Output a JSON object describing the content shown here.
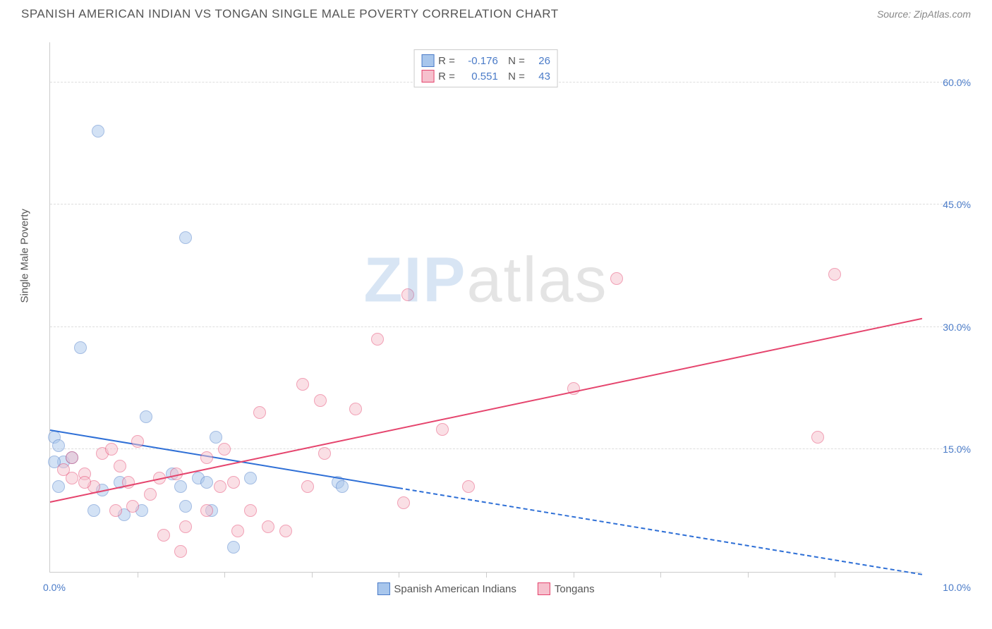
{
  "header": {
    "title": "SPANISH AMERICAN INDIAN VS TONGAN SINGLE MALE POVERTY CORRELATION CHART",
    "source": "Source: ZipAtlas.com"
  },
  "watermark": {
    "zip": "ZIP",
    "atlas": "atlas"
  },
  "chart": {
    "type": "scatter",
    "background_color": "#ffffff",
    "grid_color": "#dddddd",
    "axis_color": "#cccccc",
    "axis_label_color": "#4a7bc8",
    "text_color": "#555555",
    "title_fontsize": 17,
    "label_fontsize": 14,
    "y_axis_title": "Single Male Poverty",
    "xlim": [
      0,
      10
    ],
    "ylim": [
      0,
      65
    ],
    "x_ticks": [
      0,
      1,
      2,
      3,
      4,
      5,
      6,
      7,
      8,
      9,
      10
    ],
    "x_tick_labels": [
      "0.0%",
      "",
      "",
      "",
      "",
      "",
      "",
      "",
      "",
      "",
      "10.0%"
    ],
    "y_ticks": [
      15,
      30,
      45,
      60
    ],
    "y_tick_labels": [
      "15.0%",
      "30.0%",
      "45.0%",
      "60.0%"
    ],
    "marker_radius": 9,
    "marker_opacity": 0.5,
    "series": [
      {
        "name": "Spanish American Indians",
        "marker_fill": "#a8c6ec",
        "marker_stroke": "#4a7bc8",
        "line_color": "#2e6fd6",
        "line_width": 2,
        "R": "-0.176",
        "N": "26",
        "points": [
          [
            0.55,
            54.0
          ],
          [
            1.55,
            41.0
          ],
          [
            0.35,
            27.5
          ],
          [
            0.05,
            16.5
          ],
          [
            0.1,
            15.5
          ],
          [
            0.15,
            13.5
          ],
          [
            0.05,
            13.5
          ],
          [
            0.25,
            14.0
          ],
          [
            0.8,
            11.0
          ],
          [
            1.1,
            19.0
          ],
          [
            1.4,
            12.0
          ],
          [
            1.5,
            10.5
          ],
          [
            1.55,
            8.0
          ],
          [
            1.85,
            7.5
          ],
          [
            0.5,
            7.5
          ],
          [
            0.85,
            7.0
          ],
          [
            1.05,
            7.5
          ],
          [
            1.7,
            11.5
          ],
          [
            1.8,
            11.0
          ],
          [
            1.9,
            16.5
          ],
          [
            2.1,
            3.0
          ],
          [
            2.3,
            11.5
          ],
          [
            3.3,
            11.0
          ],
          [
            3.35,
            10.5
          ],
          [
            0.1,
            10.5
          ],
          [
            0.6,
            10.0
          ]
        ],
        "trend": {
          "x1": 0,
          "y1": 17.3,
          "x2": 4.0,
          "y2": 10.2,
          "x2_ext": 10.0,
          "y2_ext": -0.4
        }
      },
      {
        "name": "Tongans",
        "marker_fill": "#f6c0cd",
        "marker_stroke": "#e5446d",
        "line_color": "#e5446d",
        "line_width": 2,
        "R": "0.551",
        "N": "43",
        "points": [
          [
            0.15,
            12.5
          ],
          [
            0.25,
            11.5
          ],
          [
            0.25,
            14.0
          ],
          [
            0.4,
            12.0
          ],
          [
            0.5,
            10.5
          ],
          [
            0.6,
            14.5
          ],
          [
            0.7,
            15.0
          ],
          [
            0.8,
            13.0
          ],
          [
            0.75,
            7.5
          ],
          [
            0.9,
            11.0
          ],
          [
            0.95,
            8.0
          ],
          [
            1.0,
            16.0
          ],
          [
            1.15,
            9.5
          ],
          [
            1.25,
            11.5
          ],
          [
            1.3,
            4.5
          ],
          [
            1.45,
            12.0
          ],
          [
            1.55,
            5.5
          ],
          [
            1.8,
            14.0
          ],
          [
            1.8,
            7.5
          ],
          [
            1.95,
            10.5
          ],
          [
            2.0,
            15.0
          ],
          [
            2.1,
            11.0
          ],
          [
            2.15,
            5.0
          ],
          [
            2.3,
            7.5
          ],
          [
            2.4,
            19.5
          ],
          [
            2.5,
            5.5
          ],
          [
            2.9,
            23.0
          ],
          [
            2.95,
            10.5
          ],
          [
            3.1,
            21.0
          ],
          [
            3.15,
            14.5
          ],
          [
            3.5,
            20.0
          ],
          [
            3.75,
            28.5
          ],
          [
            4.05,
            8.5
          ],
          [
            4.1,
            34.0
          ],
          [
            4.5,
            17.5
          ],
          [
            4.8,
            10.5
          ],
          [
            6.0,
            22.5
          ],
          [
            6.5,
            36.0
          ],
          [
            8.8,
            16.5
          ],
          [
            9.0,
            36.5
          ],
          [
            0.4,
            11.0
          ],
          [
            1.5,
            2.5
          ],
          [
            2.7,
            5.0
          ]
        ],
        "trend": {
          "x1": 0,
          "y1": 8.5,
          "x2": 10.0,
          "y2": 31.0
        }
      }
    ],
    "legend_bottom": [
      {
        "label": "Spanish American Indians",
        "fill": "#a8c6ec",
        "stroke": "#4a7bc8"
      },
      {
        "label": "Tongans",
        "fill": "#f6c0cd",
        "stroke": "#e5446d"
      }
    ]
  }
}
